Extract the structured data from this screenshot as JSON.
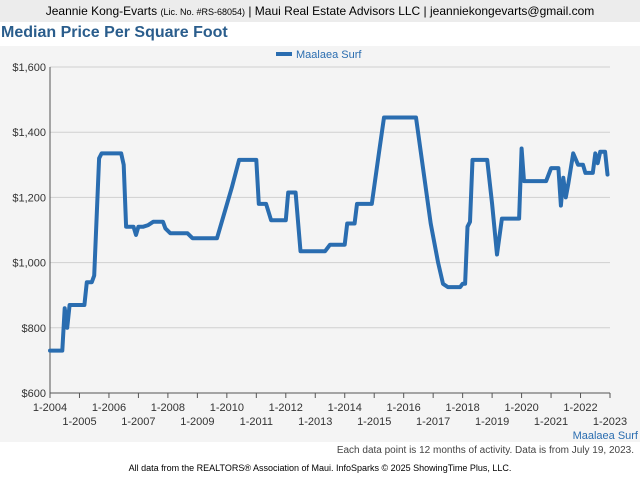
{
  "header": {
    "agent_name": "Jeannie Kong-Evarts",
    "license": "(Lic. No. #RS-68054)",
    "rest": "| Maui Real Estate Advisors LLC | jeanniekongevarts@gmail.com"
  },
  "footnote": "Each data point is 12 months of activity. Data is from July 19, 2023.",
  "source": "All data from the REALTORS® Association of Maui. InfoSparks © 2025 ShowingTime Plus, LLC.",
  "chart_data": {
    "type": "line",
    "title": "Median Price Per Square Foot",
    "xlabel": "",
    "ylabel": "",
    "ylim": [
      600,
      1600
    ],
    "xlim": [
      "2004-01",
      "2023-01"
    ],
    "y_ticks": [
      {
        "value": 600,
        "label": "$600"
      },
      {
        "value": 800,
        "label": "$800"
      },
      {
        "value": 1000,
        "label": "$1,000"
      },
      {
        "value": 1200,
        "label": "$1,200"
      },
      {
        "value": 1400,
        "label": "$1,400"
      },
      {
        "value": 1600,
        "label": "$1,600"
      }
    ],
    "x_ticks": [
      {
        "value": "2004-01",
        "label": "1-2004"
      },
      {
        "value": "2005-01",
        "label": "1-2005"
      },
      {
        "value": "2006-01",
        "label": "1-2006"
      },
      {
        "value": "2007-01",
        "label": "1-2007"
      },
      {
        "value": "2008-01",
        "label": "1-2008"
      },
      {
        "value": "2009-01",
        "label": "1-2009"
      },
      {
        "value": "2010-01",
        "label": "1-2010"
      },
      {
        "value": "2011-01",
        "label": "1-2011"
      },
      {
        "value": "2012-01",
        "label": "1-2012"
      },
      {
        "value": "2013-01",
        "label": "1-2013"
      },
      {
        "value": "2014-01",
        "label": "1-2014"
      },
      {
        "value": "2015-01",
        "label": "1-2015"
      },
      {
        "value": "2016-01",
        "label": "1-2016"
      },
      {
        "value": "2017-01",
        "label": "1-2017"
      },
      {
        "value": "2018-01",
        "label": "1-2018"
      },
      {
        "value": "2019-01",
        "label": "1-2019"
      },
      {
        "value": "2020-01",
        "label": "1-2020"
      },
      {
        "value": "2021-01",
        "label": "1-2021"
      },
      {
        "value": "2022-01",
        "label": "1-2022"
      },
      {
        "value": "2023-01",
        "label": "1-2023"
      }
    ],
    "grid": true,
    "legend": "top-center",
    "series": [
      {
        "name": "Maalaea Surf",
        "color": "#2a6db0",
        "end_label": "Maalaea Surf",
        "points": [
          [
            "2004-01",
            730
          ],
          [
            "2004-06",
            730
          ],
          [
            "2004-07",
            860
          ],
          [
            "2004-08",
            800
          ],
          [
            "2004-09",
            870
          ],
          [
            "2005-03",
            870
          ],
          [
            "2005-04",
            940
          ],
          [
            "2005-06",
            940
          ],
          [
            "2005-07",
            960
          ],
          [
            "2005-09",
            1320
          ],
          [
            "2005-10",
            1335
          ],
          [
            "2006-06",
            1335
          ],
          [
            "2006-07",
            1300
          ],
          [
            "2006-08",
            1110
          ],
          [
            "2006-11",
            1110
          ],
          [
            "2006-12",
            1085
          ],
          [
            "2007-01",
            1110
          ],
          [
            "2007-03",
            1110
          ],
          [
            "2007-05",
            1115
          ],
          [
            "2007-07",
            1125
          ],
          [
            "2007-11",
            1125
          ],
          [
            "2007-12",
            1105
          ],
          [
            "2008-02",
            1090
          ],
          [
            "2008-09",
            1090
          ],
          [
            "2008-11",
            1075
          ],
          [
            "2009-09",
            1075
          ],
          [
            "2010-03",
            1230
          ],
          [
            "2010-06",
            1315
          ],
          [
            "2011-01",
            1315
          ],
          [
            "2011-02",
            1180
          ],
          [
            "2011-05",
            1180
          ],
          [
            "2011-07",
            1130
          ],
          [
            "2012-01",
            1130
          ],
          [
            "2012-02",
            1215
          ],
          [
            "2012-05",
            1215
          ],
          [
            "2012-07",
            1035
          ],
          [
            "2013-05",
            1035
          ],
          [
            "2013-07",
            1055
          ],
          [
            "2014-01",
            1055
          ],
          [
            "2014-02",
            1120
          ],
          [
            "2014-05",
            1120
          ],
          [
            "2014-06",
            1180
          ],
          [
            "2014-12",
            1180
          ],
          [
            "2015-03",
            1340
          ],
          [
            "2015-05",
            1445
          ],
          [
            "2016-06",
            1445
          ],
          [
            "2016-12",
            1120
          ],
          [
            "2017-03",
            1000
          ],
          [
            "2017-05",
            935
          ],
          [
            "2017-07",
            925
          ],
          [
            "2017-12",
            925
          ],
          [
            "2018-01",
            935
          ],
          [
            "2018-02",
            935
          ],
          [
            "2018-03",
            1110
          ],
          [
            "2018-04",
            1125
          ],
          [
            "2018-05",
            1315
          ],
          [
            "2018-11",
            1315
          ],
          [
            "2019-01",
            1180
          ],
          [
            "2019-03",
            1025
          ],
          [
            "2019-05",
            1135
          ],
          [
            "2019-12",
            1135
          ],
          [
            "2020-01",
            1350
          ],
          [
            "2020-02",
            1250
          ],
          [
            "2020-11",
            1250
          ],
          [
            "2021-01",
            1290
          ],
          [
            "2021-04",
            1290
          ],
          [
            "2021-05",
            1175
          ],
          [
            "2021-06",
            1260
          ],
          [
            "2021-07",
            1200
          ],
          [
            "2021-08",
            1240
          ],
          [
            "2021-10",
            1335
          ],
          [
            "2021-12",
            1300
          ],
          [
            "2022-02",
            1300
          ],
          [
            "2022-03",
            1275
          ],
          [
            "2022-06",
            1275
          ],
          [
            "2022-07",
            1335
          ],
          [
            "2022-08",
            1305
          ],
          [
            "2022-09",
            1340
          ],
          [
            "2022-11",
            1340
          ],
          [
            "2022-12",
            1270
          ]
        ]
      }
    ]
  }
}
